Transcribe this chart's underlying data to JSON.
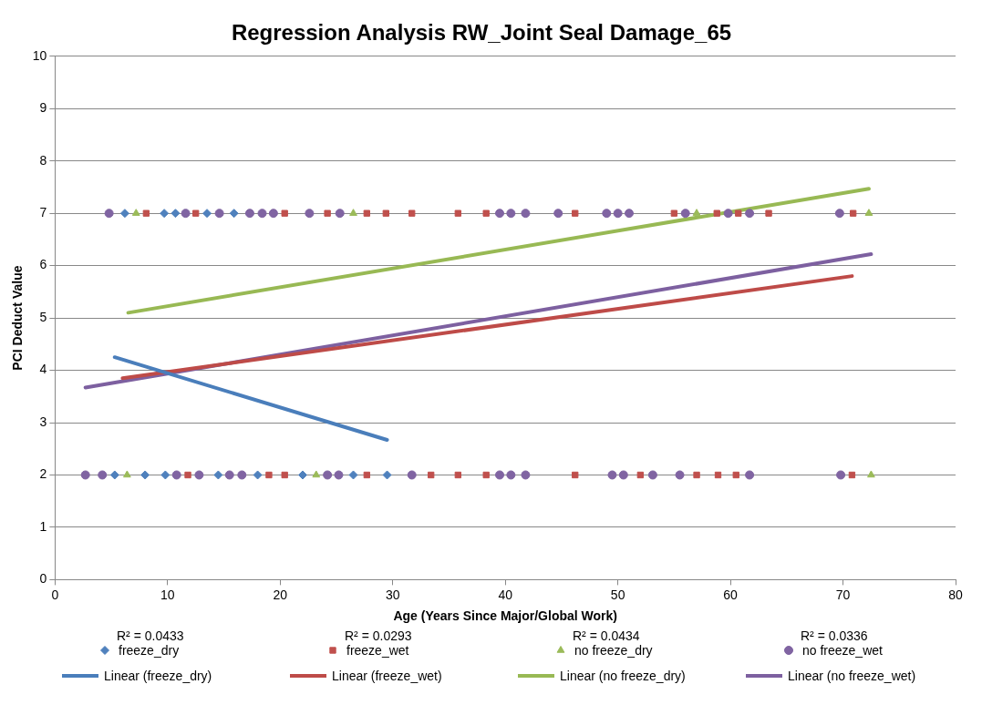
{
  "chart_data": {
    "type": "scatter",
    "title": "Regression Analysis RW_Joint Seal Damage_65",
    "xlabel": "Age (Years Since Major/Global Work)",
    "ylabel": "PCI Deduct Value",
    "xlim": [
      0,
      80
    ],
    "xticks": [
      0,
      10,
      20,
      30,
      40,
      50,
      60,
      70,
      80
    ],
    "ylim": [
      0,
      10
    ],
    "yticks": [
      0,
      1,
      2,
      3,
      4,
      5,
      6,
      7,
      8,
      9,
      10
    ],
    "grid": "y",
    "legend": "bottom",
    "annotations": [
      "R² = 0.0433",
      "R² = 0.0293",
      "R² = 0.0434",
      "R² = 0.0336"
    ],
    "series": [
      {
        "name": "freeze_dry",
        "type": "scatter",
        "marker": "diamond",
        "color": "#4f81bd",
        "x": [
          6.2,
          9.7,
          10.7,
          13.5,
          15.9,
          5.3,
          8,
          9.8,
          14.5,
          18,
          22,
          26.5,
          29.5
        ],
        "values": [
          7,
          7,
          7,
          7,
          7,
          2,
          2,
          2,
          2,
          2,
          2,
          2,
          2
        ]
      },
      {
        "name": "freeze_wet",
        "type": "scatter",
        "marker": "square",
        "color": "#c0504d",
        "x": [
          8.1,
          12.5,
          20.4,
          24.2,
          27.7,
          29.4,
          31.7,
          35.8,
          38.3,
          46.2,
          55,
          58.8,
          60.7,
          63.4,
          70.9,
          11.8,
          19,
          20.4,
          27.7,
          33.4,
          35.8,
          38.3,
          46.2,
          52,
          57,
          58.9,
          60.5,
          70.8
        ],
        "values": [
          7,
          7,
          7,
          7,
          7,
          7,
          7,
          7,
          7,
          7,
          7,
          7,
          7,
          7,
          7,
          2,
          2,
          2,
          2,
          2,
          2,
          2,
          2,
          2,
          2,
          2,
          2,
          2
        ]
      },
      {
        "name": "no freeze_dry",
        "type": "scatter",
        "marker": "triangle",
        "color": "#9bbb59",
        "x": [
          7.2,
          26.5,
          57,
          72.3,
          6.4,
          23.2,
          72.5
        ],
        "values": [
          7,
          7,
          7,
          7,
          2,
          2,
          2
        ]
      },
      {
        "name": "no freeze_wet",
        "type": "scatter",
        "marker": "circle",
        "color": "#8064a2",
        "x": [
          4.8,
          11.6,
          14.6,
          17.3,
          18.4,
          19.4,
          22.6,
          25.3,
          39.5,
          40.5,
          41.8,
          44.7,
          49,
          50,
          51,
          56,
          59.8,
          61.7,
          69.7,
          2.7,
          4.2,
          10.8,
          12.8,
          15.5,
          16.6,
          24.2,
          25.2,
          31.7,
          39.5,
          40.5,
          41.8,
          49.5,
          50.5,
          53.1,
          55.5,
          61.7,
          69.8
        ],
        "values": [
          7,
          7,
          7,
          7,
          7,
          7,
          7,
          7,
          7,
          7,
          7,
          7,
          7,
          7,
          7,
          7,
          7,
          7,
          7,
          2,
          2,
          2,
          2,
          2,
          2,
          2,
          2,
          2,
          2,
          2,
          2,
          2,
          2,
          2,
          2,
          2,
          2
        ]
      },
      {
        "name": "Linear (freeze_dry)",
        "type": "line",
        "marker": "none",
        "color": "#4a7ebb",
        "x": [
          5.3,
          29.5
        ],
        "values": [
          4.25,
          2.67
        ]
      },
      {
        "name": "Linear (freeze_wet)",
        "type": "line",
        "marker": "none",
        "color": "#be4b48",
        "x": [
          6,
          70.8
        ],
        "values": [
          3.85,
          5.8
        ]
      },
      {
        "name": "Linear (no freeze_dry)",
        "type": "line",
        "marker": "none",
        "color": "#98b954",
        "x": [
          6.5,
          72.3
        ],
        "values": [
          5.1,
          7.47
        ]
      },
      {
        "name": "Linear (no freeze_wet)",
        "type": "line",
        "marker": "none",
        "color": "#7d60a0",
        "x": [
          2.7,
          72.5
        ],
        "values": [
          3.67,
          6.22
        ]
      }
    ]
  }
}
